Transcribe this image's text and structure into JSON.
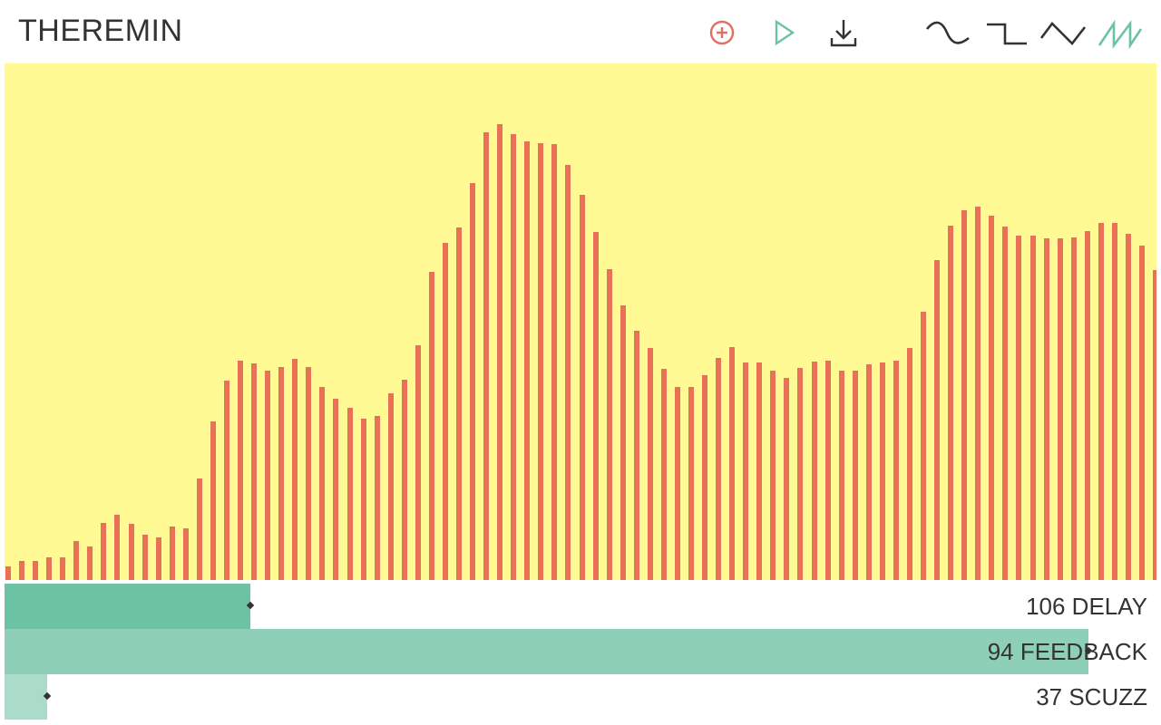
{
  "app": {
    "title": "THEREMIN"
  },
  "toolbar": {
    "buttons": [
      {
        "icon": "add-circle-icon",
        "color": "#e07060"
      },
      {
        "icon": "play-icon",
        "color": "#6cc3a4"
      },
      {
        "icon": "download-icon",
        "color": "#333333"
      }
    ],
    "waveforms": [
      {
        "icon": "sine-wave-icon",
        "selected": false
      },
      {
        "icon": "square-wave-icon",
        "selected": false
      },
      {
        "icon": "triangle-wave-icon",
        "selected": false
      },
      {
        "icon": "sawtooth-wave-icon",
        "selected": true
      }
    ]
  },
  "colors": {
    "spectrum_bg": "#fffa93",
    "bar": "#e87157",
    "accent": "#6cc3a4",
    "text": "#333333"
  },
  "spectrum": {
    "levels": [
      0.026,
      0.037,
      0.037,
      0.044,
      0.044,
      0.076,
      0.065,
      0.111,
      0.127,
      0.108,
      0.088,
      0.083,
      0.104,
      0.1,
      0.197,
      0.307,
      0.386,
      0.424,
      0.42,
      0.405,
      0.412,
      0.428,
      0.412,
      0.374,
      0.35,
      0.333,
      0.312,
      0.318,
      0.362,
      0.388,
      0.455,
      0.597,
      0.653,
      0.683,
      0.769,
      0.866,
      0.882,
      0.863,
      0.849,
      0.846,
      0.844,
      0.804,
      0.745,
      0.673,
      0.601,
      0.532,
      0.483,
      0.449,
      0.408,
      0.373,
      0.373,
      0.397,
      0.43,
      0.45,
      0.421,
      0.421,
      0.405,
      0.391,
      0.41,
      0.423,
      0.425,
      0.405,
      0.405,
      0.418,
      0.421,
      0.424,
      0.449,
      0.519,
      0.619,
      0.686,
      0.716,
      0.722,
      0.705,
      0.684,
      0.666,
      0.666,
      0.661,
      0.661,
      0.664,
      0.675,
      0.691,
      0.691,
      0.671,
      0.648,
      0.6,
      0.579
    ]
  },
  "sliders": [
    {
      "label": "106 DELAY",
      "value": 0.213,
      "fill": "#6cc3a4"
    },
    {
      "label": "94 FEEDBACK",
      "value": 0.941,
      "fill": "#8dd0b7"
    },
    {
      "label": "37 SCUZZ",
      "value": 0.037,
      "fill": "#abdcca"
    }
  ]
}
